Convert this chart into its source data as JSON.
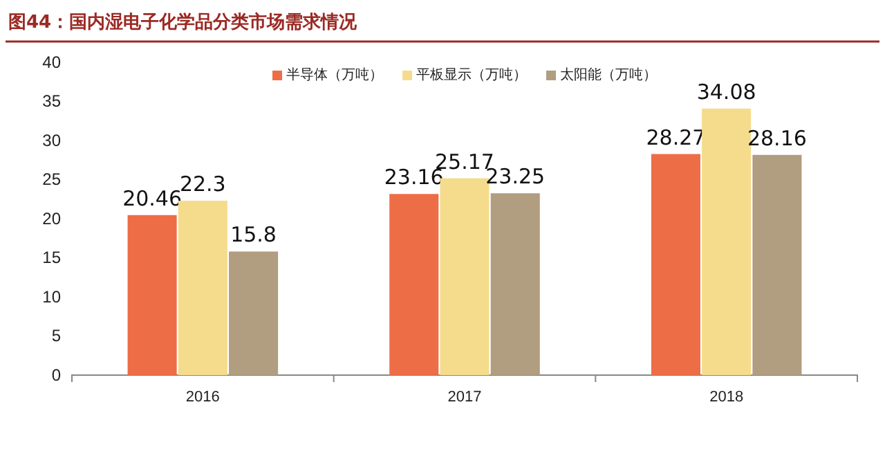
{
  "chart_data": {
    "type": "bar",
    "title": "图44：国内湿电子化学品分类市场需求情况",
    "categories": [
      "2016",
      "2017",
      "2018"
    ],
    "series": [
      {
        "name": "半导体（万吨）",
        "color": "#ed6d47",
        "values": [
          20.46,
          23.16,
          28.27
        ]
      },
      {
        "name": "平板显示（万吨）",
        "color": "#f5dc8c",
        "values": [
          22.3,
          25.17,
          34.08
        ]
      },
      {
        "name": "太阳能（万吨）",
        "color": "#b19d7f",
        "values": [
          15.8,
          23.25,
          28.16
        ]
      }
    ],
    "ylim": [
      0,
      40
    ],
    "yticks": [
      0,
      5,
      10,
      15,
      20,
      25,
      30,
      35,
      40
    ],
    "data_labels": true,
    "legend": "top",
    "grid": false
  }
}
